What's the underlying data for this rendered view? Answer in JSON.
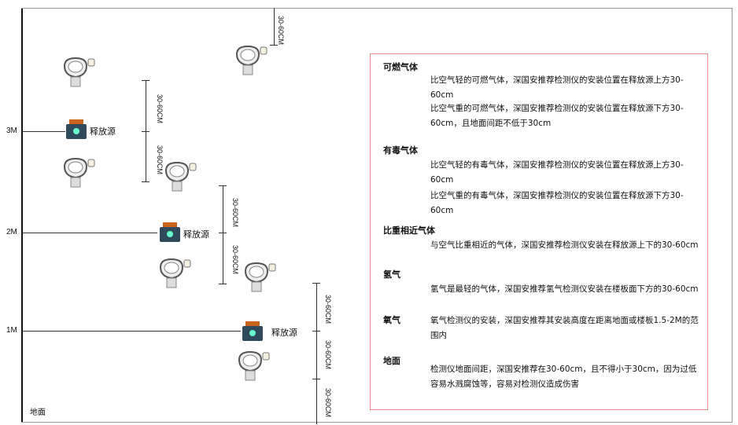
{
  "levels": {
    "m3": "3M",
    "m2": "2M",
    "m1": "1M"
  },
  "ground_label": "地面",
  "release_source_label": "释放源",
  "dimension_label": "30-60CM",
  "colors": {
    "box_border": "#e88a8a",
    "source_body": "#2f4a5a",
    "source_cap": "#c8641e"
  },
  "panel": {
    "sections": [
      {
        "title": "可燃气体",
        "paragraphs": [
          "比空气轻的可燃气体，深国安推荐检测仪的安装位置在释放源上方30-60cm",
          "比空气重的可燃气体，深国安推荐检测仪的安装位置在释放源下方30-60cm，且地面间距不低于30cm"
        ]
      },
      {
        "title": "有毒气体",
        "paragraphs": [
          "比空气轻的有毒气体，深国安推荐检测仪的安装位置在释放源上方30-60cm",
          "比空气重的有毒气体，深国安推荐检测仪的安装位置在释放源下方30-60cm"
        ]
      },
      {
        "title": "比重相近气体",
        "paragraphs": [
          "与空气比重相近的气体，深国安推荐检测仪安装在释放源上下的30-60cm"
        ]
      },
      {
        "title": "氢气",
        "paragraphs": [
          "氢气是最轻的气体，深国安推荐氢气检测仪安装在楼板面下方的30-60cm"
        ]
      },
      {
        "title": "氧气",
        "paragraphs": [
          "氧气检测仪的安装，深国安推荐其安装高度在距离地面或楼板1.5-2M的范围内"
        ]
      },
      {
        "title": "地面",
        "paragraphs": [
          "检测仪地面间距，深国安推荐在30-60cm，且不得小于30cm，因为过低容易水溅腐蚀等，容易对检测仪造成伤害"
        ]
      }
    ]
  }
}
